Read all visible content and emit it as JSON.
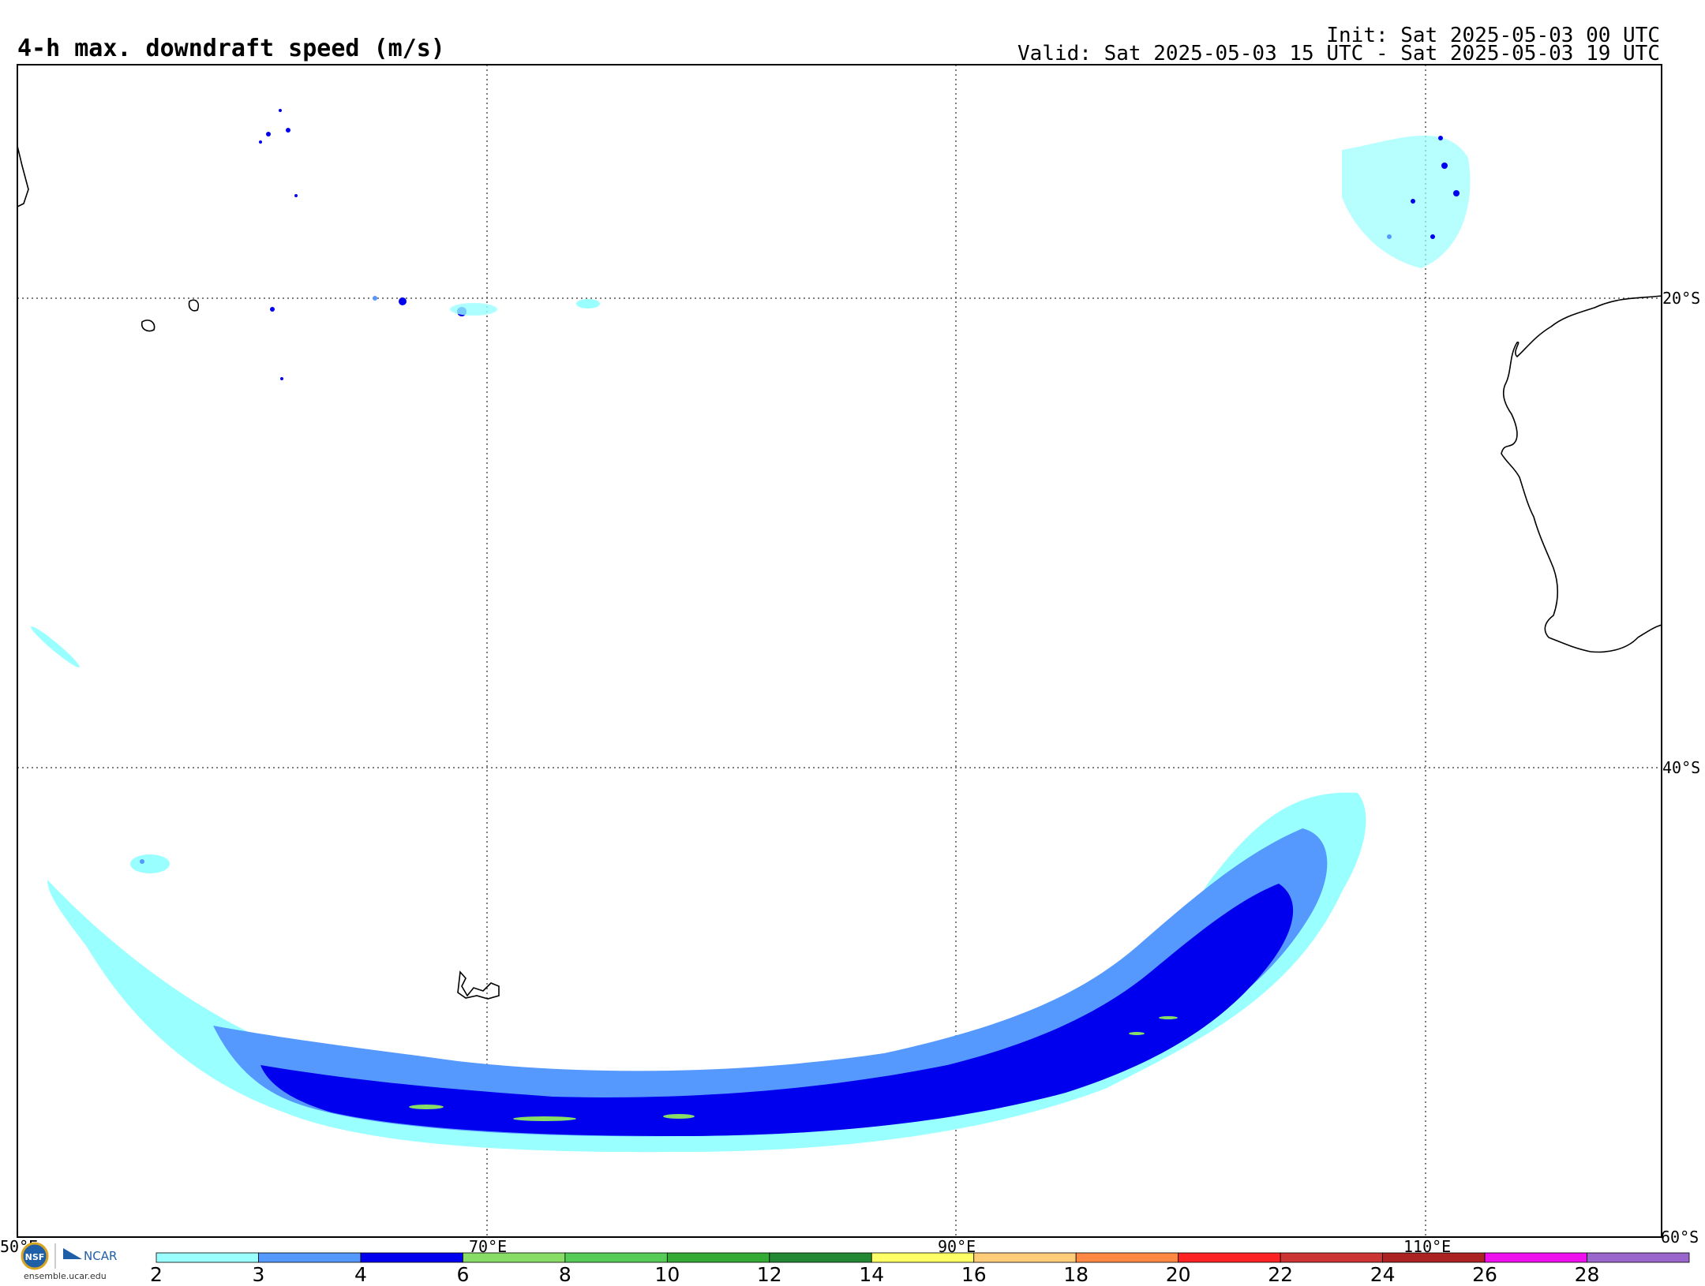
{
  "header": {
    "title": "4-h max. downdraft speed (m/s)",
    "init": "Init: Sat 2025-05-03 00 UTC",
    "valid": "Valid: Sat 2025-05-03 15 UTC - Sat 2025-05-03 19 UTC"
  },
  "axes": {
    "lon_labels": [
      "50°E",
      "70°E",
      "90°E",
      "110°E"
    ],
    "lat_labels": [
      "20°S",
      "40°S",
      "60°S"
    ]
  },
  "colorbar": {
    "ticks": [
      "2",
      "3",
      "4",
      "6",
      "8",
      "10",
      "12",
      "14",
      "16",
      "18",
      "20",
      "22",
      "24",
      "26",
      "28"
    ],
    "colors": [
      "#99ffff",
      "#5599ff",
      "#0000ee",
      "#88dd66",
      "#55cc55",
      "#33aa33",
      "#228833",
      "#ffff66",
      "#ffcc77",
      "#ff8844",
      "#ff2222",
      "#cc3333",
      "#aa2222",
      "#ee11ee",
      "#9966cc"
    ]
  },
  "logos": {
    "nsf": "NSF",
    "ncar": "NCAR",
    "site": "ensemble.ucar.edu"
  }
}
